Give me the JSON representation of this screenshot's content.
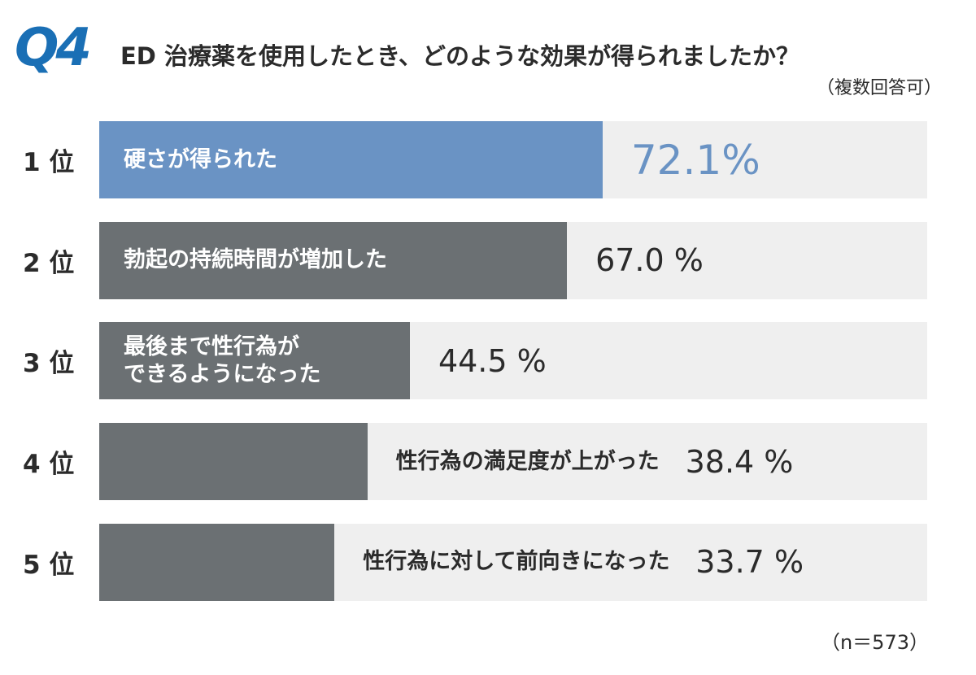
{
  "chart_data": {
    "type": "bar",
    "badge": "Q4",
    "title": "ED 治療薬を使用したとき、どのような効果が得られましたか？",
    "subtitle": "（複数回答可）",
    "ranks": [
      "1 位",
      "2 位",
      "3 位",
      "4 位",
      "5 位"
    ],
    "categories": [
      "硬さが得られた",
      "勃起の持続時間が増加した",
      "最後まで性行為が\nできるようになった",
      "性行為の満足度が上がった",
      "性行為に対して前向きになった"
    ],
    "values": [
      72.1,
      67.0,
      44.5,
      38.4,
      33.7
    ],
    "value_labels": [
      "72.1%",
      "67.0 %",
      "44.5 %",
      "38.4 %",
      "33.7 %"
    ],
    "colors": [
      "#6a93c4",
      "#6b7073",
      "#6b7073",
      "#6b7073",
      "#6b7073"
    ],
    "xlim": [
      0,
      118.6
    ],
    "note": "（n＝573）"
  }
}
